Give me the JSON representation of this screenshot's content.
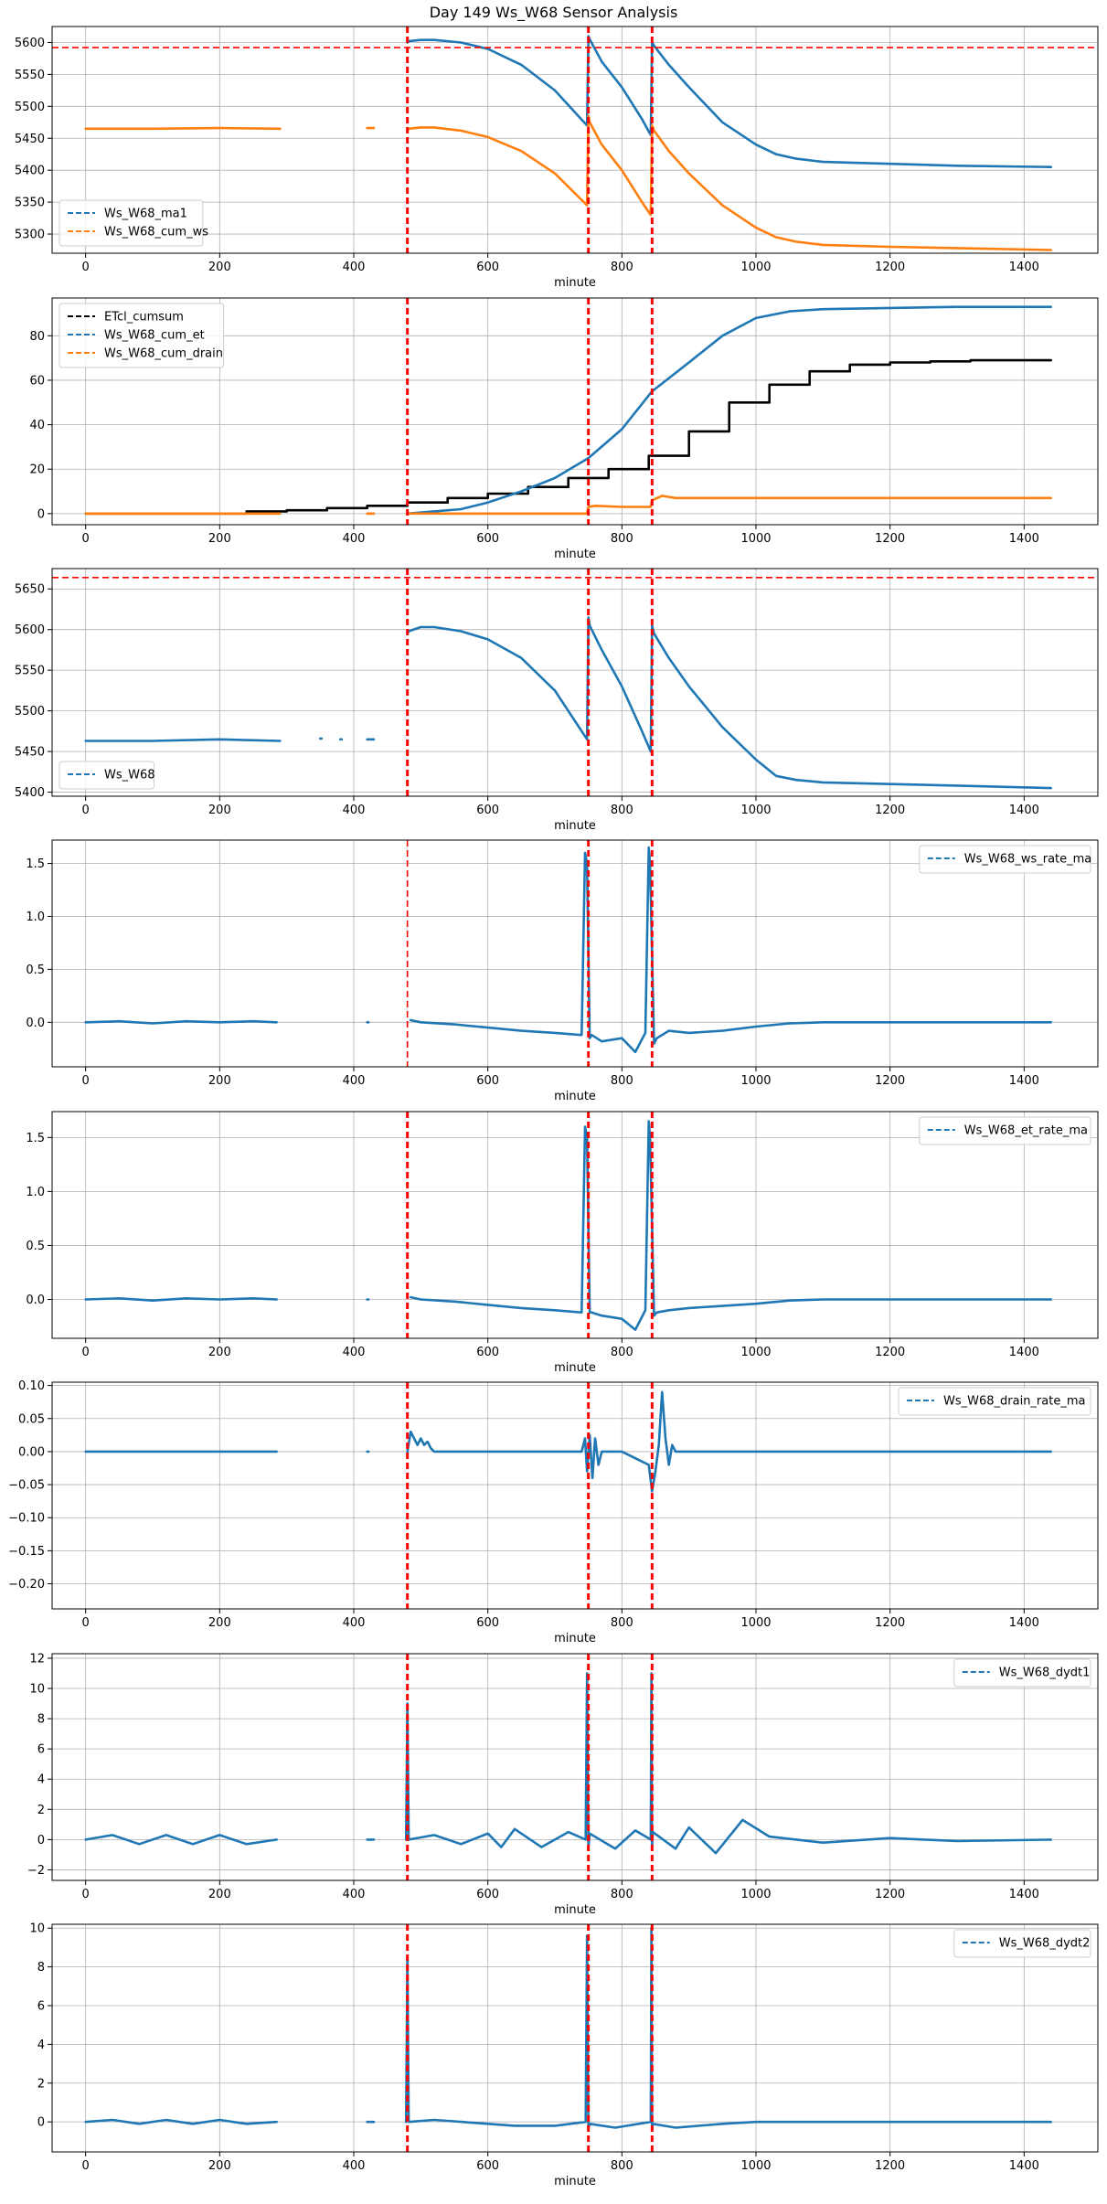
{
  "figure": {
    "title": "Day 149 Ws_W68 Sensor Analysis"
  },
  "colors": {
    "blue": "#1f77b4",
    "orange": "#ff7f0e",
    "black": "#000000",
    "red": "#ff0000",
    "grid": "#b0b0b0"
  },
  "chart_data": [
    {
      "type": "line",
      "xlabel": "minute",
      "xlim": [
        -50,
        1510
      ],
      "xticks": [
        0,
        200,
        400,
        600,
        800,
        1000,
        1200,
        1400
      ],
      "ylim": [
        5270,
        5625
      ],
      "yticks": [
        5300,
        5350,
        5400,
        5450,
        5500,
        5550,
        5600
      ],
      "legend": "lower-left",
      "event_lines": [
        480,
        750,
        845
      ],
      "hlines": [
        5592
      ],
      "series": [
        {
          "name": "Ws_W68_ma1",
          "color": "#1f77b4",
          "x": [
            480,
            482,
            500,
            520,
            560,
            600,
            650,
            700,
            748,
            750,
            752,
            770,
            800,
            830,
            843,
            845,
            848,
            870,
            900,
            950,
            1000,
            1030,
            1060,
            1100,
            1200,
            1300,
            1440
          ],
          "y": [
            5600,
            5602,
            5604,
            5604,
            5600,
            5590,
            5565,
            5525,
            5470,
            5610,
            5605,
            5570,
            5530,
            5480,
            5455,
            5600,
            5595,
            5565,
            5530,
            5475,
            5440,
            5425,
            5418,
            5413,
            5410,
            5407,
            5405
          ]
        },
        {
          "name": "Ws_W68_cum_ws",
          "color": "#ff7f0e",
          "x": [
            0,
            100,
            200,
            290,
            null,
            420,
            430,
            null,
            480,
            482,
            500,
            520,
            560,
            600,
            650,
            700,
            748,
            750,
            752,
            770,
            800,
            830,
            843,
            845,
            848,
            870,
            900,
            950,
            1000,
            1030,
            1060,
            1100,
            1200,
            1300,
            1440
          ],
          "y": [
            5465,
            5465,
            5466,
            5465,
            null,
            5466,
            5466,
            null,
            5462,
            5465,
            5467,
            5467,
            5462,
            5452,
            5430,
            5395,
            5345,
            5485,
            5475,
            5440,
            5400,
            5350,
            5330,
            5470,
            5462,
            5430,
            5395,
            5345,
            5310,
            5295,
            5288,
            5283,
            5280,
            5278,
            5275
          ]
        }
      ]
    },
    {
      "type": "line",
      "xlabel": "minute",
      "xlim": [
        -50,
        1510
      ],
      "xticks": [
        0,
        200,
        400,
        600,
        800,
        1000,
        1200,
        1400
      ],
      "ylim": [
        -5,
        97
      ],
      "yticks": [
        0,
        20,
        40,
        60,
        80
      ],
      "legend": "upper-left",
      "event_lines": [
        480,
        750,
        845
      ],
      "hlines": [],
      "series": [
        {
          "name": "ETcl_cumsum",
          "color": "#000000",
          "step": true,
          "x": [
            0,
            240,
            300,
            360,
            420,
            480,
            540,
            600,
            660,
            720,
            780,
            840,
            900,
            960,
            1020,
            1080,
            1140,
            1200,
            1260,
            1320,
            1440
          ],
          "y": [
            0,
            1,
            1.5,
            2.5,
            3.5,
            5,
            7,
            9,
            12,
            16,
            20,
            26,
            37,
            50,
            58,
            64,
            67,
            68,
            68.5,
            69,
            69
          ]
        },
        {
          "name": "Ws_W68_cum_et",
          "color": "#1f77b4",
          "x": [
            480,
            520,
            560,
            600,
            650,
            700,
            750,
            800,
            845,
            900,
            950,
            1000,
            1050,
            1100,
            1200,
            1300,
            1440
          ],
          "y": [
            0,
            1,
            2,
            5,
            10,
            16,
            25,
            38,
            55,
            68,
            80,
            88,
            91,
            92,
            92.5,
            93,
            93
          ]
        },
        {
          "name": "Ws_W68_cum_drain",
          "color": "#ff7f0e",
          "x": [
            0,
            100,
            200,
            290,
            null,
            420,
            430,
            null,
            480,
            600,
            748,
            750,
            760,
            800,
            843,
            845,
            860,
            880,
            900,
            1000,
            1440
          ],
          "y": [
            0,
            0,
            0,
            0,
            null,
            0,
            0,
            null,
            0,
            0,
            0,
            3,
            3.5,
            3,
            3,
            6,
            8,
            7,
            7,
            7,
            7
          ]
        }
      ]
    },
    {
      "type": "line",
      "xlabel": "minute",
      "xlim": [
        -50,
        1510
      ],
      "xticks": [
        0,
        200,
        400,
        600,
        800,
        1000,
        1200,
        1400
      ],
      "ylim": [
        5395,
        5675
      ],
      "yticks": [
        5400,
        5450,
        5500,
        5550,
        5600,
        5650
      ],
      "legend": "lower-left",
      "event_lines": [
        480,
        750,
        845
      ],
      "hlines": [
        5664
      ],
      "series": [
        {
          "name": "Ws_W68",
          "color": "#1f77b4",
          "x": [
            0,
            100,
            200,
            290,
            null,
            350,
            352,
            null,
            380,
            382,
            null,
            420,
            430,
            null,
            480,
            482,
            500,
            520,
            560,
            600,
            650,
            700,
            748,
            750,
            752,
            770,
            800,
            830,
            843,
            845,
            848,
            870,
            900,
            950,
            1000,
            1030,
            1060,
            1100,
            1200,
            1300,
            1440
          ],
          "y": [
            5463,
            5463,
            5465,
            5463,
            null,
            5466,
            5466,
            null,
            5465,
            5465,
            null,
            5465,
            5465,
            null,
            5595,
            5598,
            5603,
            5603,
            5598,
            5588,
            5565,
            5525,
            5465,
            5615,
            5605,
            5575,
            5530,
            5475,
            5450,
            5605,
            5595,
            5565,
            5530,
            5480,
            5440,
            5420,
            5415,
            5412,
            5410,
            5408,
            5405
          ]
        }
      ]
    },
    {
      "type": "line",
      "xlabel": "minute",
      "xlim": [
        -50,
        1510
      ],
      "xticks": [
        0,
        200,
        400,
        600,
        800,
        1000,
        1200,
        1400
      ],
      "ylim": [
        -0.42,
        1.72
      ],
      "yticks": [
        0.0,
        0.5,
        1.0,
        1.5
      ],
      "legend": "upper-right",
      "event_lines": [
        480,
        750,
        845
      ],
      "event_widths": [
        1,
        1.8,
        1.8
      ],
      "hlines": [],
      "series": [
        {
          "name": "Ws_W68_ws_rate_ma",
          "color": "#1f77b4",
          "x": [
            0,
            50,
            100,
            150,
            200,
            250,
            285,
            null,
            420,
            422,
            null,
            485,
            500,
            550,
            600,
            650,
            700,
            740,
            745,
            748,
            752,
            755,
            770,
            800,
            820,
            835,
            840,
            842,
            848,
            852,
            870,
            900,
            950,
            1000,
            1050,
            1100,
            1200,
            1300,
            1440
          ],
          "y": [
            0,
            0.01,
            -0.01,
            0.01,
            0,
            0.01,
            0,
            null,
            0,
            0,
            null,
            0.02,
            0,
            -0.02,
            -0.05,
            -0.08,
            -0.1,
            -0.12,
            1.6,
            1.5,
            -0.15,
            -0.12,
            -0.18,
            -0.15,
            -0.28,
            -0.1,
            1.65,
            1.5,
            -0.2,
            -0.15,
            -0.08,
            -0.1,
            -0.08,
            -0.04,
            -0.01,
            0,
            0,
            0,
            0
          ]
        }
      ]
    },
    {
      "type": "line",
      "xlabel": "minute",
      "xlim": [
        -50,
        1510
      ],
      "xticks": [
        0,
        200,
        400,
        600,
        800,
        1000,
        1200,
        1400
      ],
      "ylim": [
        -0.36,
        1.74
      ],
      "yticks": [
        0.0,
        0.5,
        1.0,
        1.5
      ],
      "legend": "upper-right",
      "event_lines": [
        480,
        750,
        845
      ],
      "hlines": [],
      "series": [
        {
          "name": "Ws_W68_et_rate_ma",
          "color": "#1f77b4",
          "x": [
            0,
            50,
            100,
            150,
            200,
            250,
            285,
            null,
            420,
            422,
            null,
            485,
            500,
            550,
            600,
            650,
            700,
            740,
            745,
            748,
            752,
            755,
            770,
            800,
            820,
            835,
            840,
            842,
            848,
            852,
            870,
            900,
            950,
            1000,
            1050,
            1100,
            1200,
            1300,
            1440
          ],
          "y": [
            0,
            0.01,
            -0.01,
            0.01,
            0,
            0.01,
            0,
            null,
            0,
            0,
            null,
            0.02,
            0,
            -0.02,
            -0.05,
            -0.08,
            -0.1,
            -0.12,
            1.6,
            1.5,
            -0.12,
            -0.12,
            -0.15,
            -0.18,
            -0.28,
            -0.1,
            1.65,
            1.5,
            -0.15,
            -0.12,
            -0.1,
            -0.08,
            -0.06,
            -0.04,
            -0.01,
            0,
            0,
            0,
            0
          ]
        }
      ]
    },
    {
      "type": "line",
      "xlabel": "minute",
      "xlim": [
        -50,
        1510
      ],
      "xticks": [
        0,
        200,
        400,
        600,
        800,
        1000,
        1200,
        1400
      ],
      "ylim": [
        -0.238,
        0.105
      ],
      "yticks": [
        -0.2,
        -0.15,
        -0.1,
        -0.05,
        0.0,
        0.05,
        0.1
      ],
      "legend": "upper-right",
      "event_lines": [
        480,
        750,
        845
      ],
      "hlines": [],
      "series": [
        {
          "name": "Ws_W68_drain_rate_ma",
          "color": "#1f77b4",
          "x": [
            0,
            100,
            200,
            285,
            null,
            420,
            422,
            null,
            480,
            485,
            490,
            495,
            500,
            505,
            510,
            515,
            520,
            540,
            600,
            700,
            740,
            745,
            748,
            752,
            756,
            760,
            765,
            770,
            800,
            840,
            845,
            850,
            855,
            860,
            865,
            870,
            875,
            880,
            900,
            1000,
            1200,
            1440
          ],
          "y": [
            0,
            0,
            0,
            0,
            null,
            0,
            0,
            null,
            0,
            0.03,
            0.02,
            0.01,
            0.02,
            0.01,
            0.015,
            0.005,
            0,
            0,
            0,
            0,
            0,
            0.02,
            -0.03,
            0.025,
            -0.04,
            0.02,
            -0.02,
            0,
            0,
            -0.02,
            -0.06,
            -0.03,
            0.01,
            0.09,
            0.02,
            -0.02,
            0.01,
            0,
            0,
            0,
            0,
            0
          ]
        }
      ]
    },
    {
      "type": "line",
      "xlabel": "minute",
      "xlim": [
        -50,
        1510
      ],
      "xticks": [
        0,
        200,
        400,
        600,
        800,
        1000,
        1200,
        1400
      ],
      "ylim": [
        -2.7,
        12.3
      ],
      "yticks": [
        -2,
        0,
        2,
        4,
        6,
        8,
        10,
        12
      ],
      "legend": "upper-right",
      "event_lines": [
        480,
        750,
        845
      ],
      "hlines": [],
      "series": [
        {
          "name": "Ws_W68_dydt1",
          "color": "#1f77b4",
          "x": [
            0,
            40,
            80,
            120,
            160,
            200,
            240,
            285,
            null,
            420,
            430,
            null,
            478,
            480,
            482,
            520,
            560,
            600,
            620,
            640,
            680,
            720,
            746,
            748,
            750,
            752,
            790,
            820,
            843,
            844,
            845,
            846,
            880,
            900,
            940,
            980,
            1020,
            1100,
            1200,
            1300,
            1440
          ],
          "y": [
            0,
            0.3,
            -0.3,
            0.3,
            -0.3,
            0.3,
            -0.3,
            0,
            null,
            0,
            0,
            null,
            0,
            9,
            0,
            0.3,
            -0.3,
            0.4,
            -0.5,
            0.7,
            -0.5,
            0.5,
            0,
            11,
            -0.5,
            0.4,
            -0.6,
            0.6,
            0,
            11,
            -0.5,
            0.5,
            -0.6,
            0.8,
            -0.9,
            1.3,
            0.2,
            -0.2,
            0.1,
            -0.1,
            0
          ]
        }
      ]
    },
    {
      "type": "line",
      "xlabel": "minute",
      "xlim": [
        -50,
        1510
      ],
      "xticks": [
        0,
        200,
        400,
        600,
        800,
        1000,
        1200,
        1400
      ],
      "ylim": [
        -1.55,
        10.2
      ],
      "yticks": [
        0,
        2,
        4,
        6,
        8,
        10
      ],
      "legend": "upper-right",
      "event_lines": [
        480,
        750,
        845
      ],
      "hlines": [],
      "series": [
        {
          "name": "Ws_W68_dydt2",
          "color": "#1f77b4",
          "x": [
            0,
            40,
            80,
            120,
            160,
            200,
            240,
            285,
            null,
            420,
            430,
            null,
            478,
            480,
            482,
            520,
            600,
            640,
            700,
            746,
            748,
            750,
            752,
            790,
            843,
            844,
            845,
            846,
            880,
            950,
            1000,
            1100,
            1200,
            1300,
            1440
          ],
          "y": [
            0,
            0.1,
            -0.1,
            0.1,
            -0.1,
            0.1,
            -0.1,
            0,
            null,
            0,
            0,
            null,
            0,
            8.5,
            0,
            0.1,
            -0.1,
            -0.2,
            -0.2,
            0,
            9.6,
            -0.3,
            -0.1,
            -0.3,
            0,
            10,
            -0.4,
            -0.1,
            -0.3,
            -0.1,
            0,
            0,
            0,
            0,
            0
          ]
        }
      ]
    }
  ]
}
